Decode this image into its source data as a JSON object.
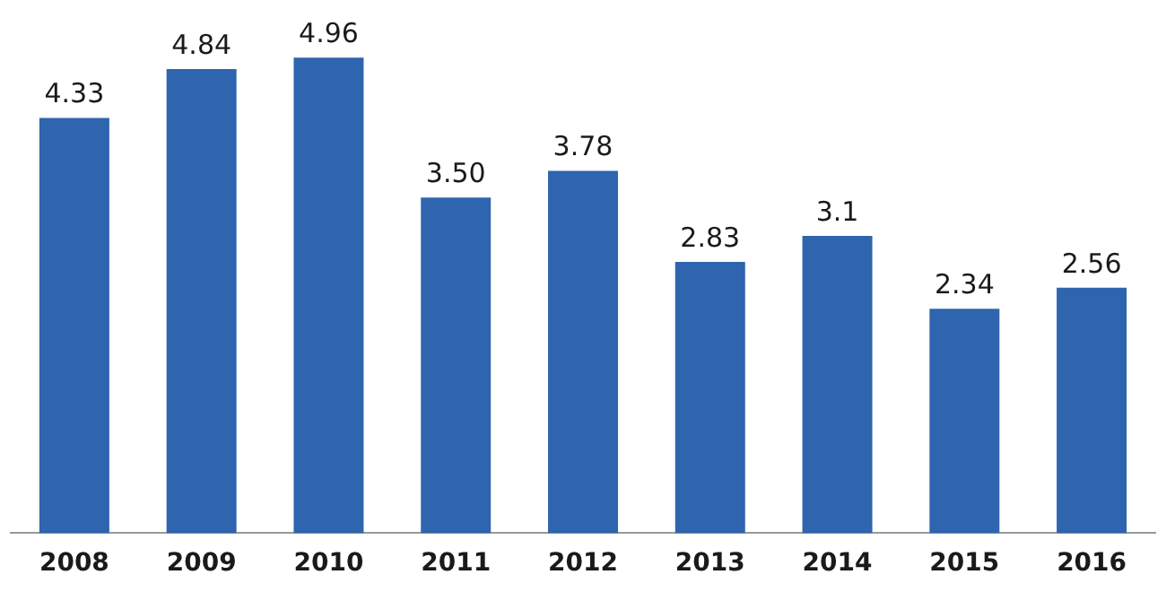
{
  "chart_data": {
    "type": "bar",
    "categories": [
      "2008",
      "2009",
      "2010",
      "2011",
      "2012",
      "2013",
      "2014",
      "2015",
      "2016"
    ],
    "values": [
      4.33,
      4.84,
      4.96,
      3.5,
      3.78,
      2.83,
      3.1,
      2.34,
      2.56
    ],
    "value_labels": [
      "4.33",
      "4.84",
      "4.96",
      "3.50",
      "3.78",
      "2.83",
      "3.1",
      "2.34",
      "2.56"
    ],
    "color": "#2f64ae",
    "tick_labels": "x",
    "grid": false,
    "legend": false
  }
}
